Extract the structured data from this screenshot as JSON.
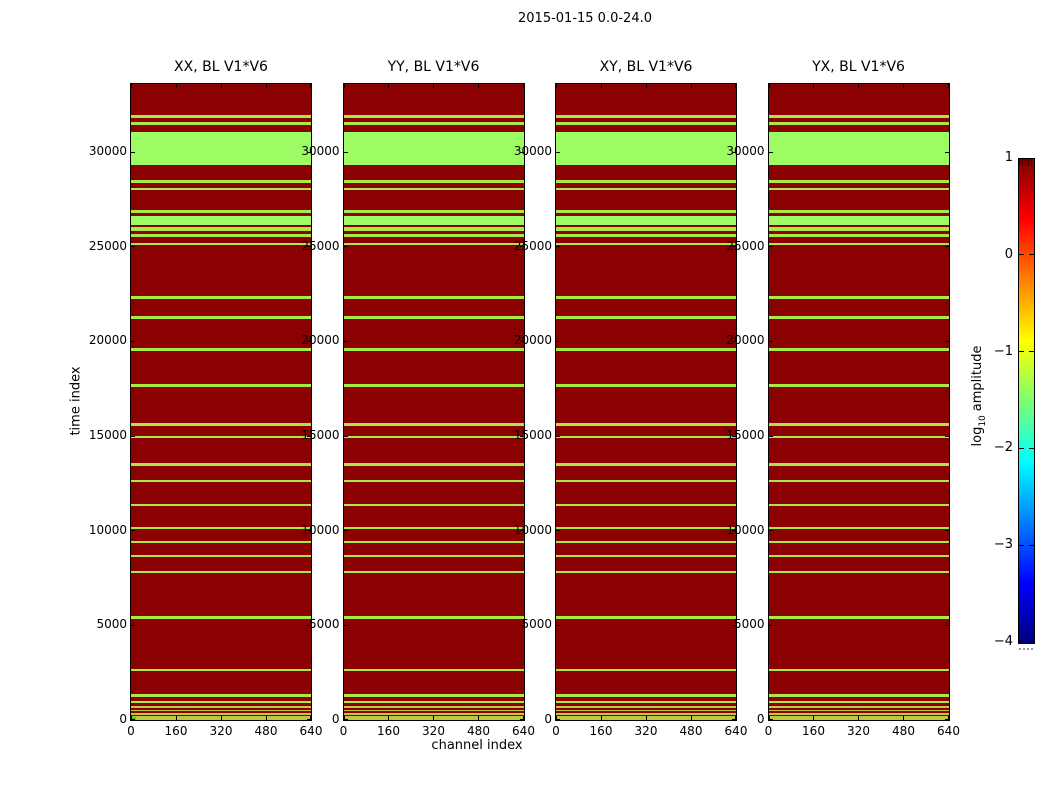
{
  "figure": {
    "title": "2015-01-15 0.0-24.0"
  },
  "colors": {
    "background": "#8b0000",
    "band": "#9dfb64",
    "line": "#a9e944",
    "yline": "#bdc83e",
    "marker": "#3ed32c",
    "axis": "#000000"
  },
  "colorbar": {
    "label": "log10 amplitude",
    "label_parts": {
      "prefix": "log",
      "sub": "10",
      "suffix": "amplitude"
    },
    "vmax": 1,
    "vmin": -4,
    "ticks": [
      {
        "v": 1,
        "label": "1"
      },
      {
        "v": 0,
        "label": "0"
      },
      {
        "v": -1,
        "label": "−1"
      },
      {
        "v": -2,
        "label": "−2"
      },
      {
        "v": -3,
        "label": "−3"
      },
      {
        "v": -4,
        "label": "−4"
      }
    ],
    "gradient": [
      [
        "0%",
        "#800000"
      ],
      [
        "12.5%",
        "#ff0000"
      ],
      [
        "37.5%",
        "#ffff00"
      ],
      [
        "50%",
        "#7dff6e"
      ],
      [
        "62.5%",
        "#00ffff"
      ],
      [
        "87.5%",
        "#0000ff"
      ],
      [
        "100%",
        "#000080"
      ]
    ]
  },
  "chart_data": {
    "type": "heatmap",
    "title": "2015-01-15 0.0-24.0",
    "xlabel": "channel index",
    "ylabel": "time index",
    "panels": [
      "XX, BL V1*V6",
      "YY, BL V1*V6",
      "XY, BL V1*V6",
      "YX, BL V1*V6"
    ],
    "x_range": [
      0,
      640
    ],
    "y_range": [
      0,
      33600
    ],
    "xticks": [
      0,
      160,
      320,
      480,
      640
    ],
    "yticks": [
      0,
      5000,
      10000,
      15000,
      20000,
      25000,
      30000
    ],
    "colorbar_label": "log10 amplitude",
    "colorbar_range": [
      -4,
      1
    ],
    "background_log10_amplitude": 1,
    "stripe_log10_amplitude": -1.5,
    "stripes": [
      [
        31790,
        31950,
        "line"
      ],
      [
        31450,
        31580,
        "line"
      ],
      [
        29330,
        31090,
        "band"
      ],
      [
        28370,
        28510,
        "line"
      ],
      [
        27980,
        28100,
        "line"
      ],
      [
        26790,
        26930,
        "line"
      ],
      [
        26150,
        26620,
        "band"
      ],
      [
        25840,
        26050,
        "line"
      ],
      [
        25530,
        25650,
        "line"
      ],
      [
        25090,
        25210,
        "line"
      ],
      [
        22260,
        22400,
        "line"
      ],
      [
        21160,
        21320,
        "line"
      ],
      [
        19500,
        19650,
        "line"
      ],
      [
        17600,
        17740,
        "line"
      ],
      [
        15550,
        15690,
        "line"
      ],
      [
        14890,
        15030,
        "line"
      ],
      [
        13420,
        13560,
        "line"
      ],
      [
        12550,
        12690,
        "line"
      ],
      [
        11290,
        11430,
        "line"
      ],
      [
        10080,
        10220,
        "line"
      ],
      [
        9340,
        9480,
        "line"
      ],
      [
        8600,
        8740,
        "line"
      ],
      [
        7740,
        7880,
        "line"
      ],
      [
        5340,
        5480,
        "line"
      ],
      [
        2580,
        2720,
        "line"
      ],
      [
        1240,
        1380,
        "line"
      ],
      [
        890,
        1030,
        "line"
      ],
      [
        620,
        740,
        "yline"
      ],
      [
        450,
        550,
        "yline"
      ],
      [
        290,
        390,
        "yline"
      ],
      [
        130,
        230,
        "yline"
      ],
      [
        0,
        80,
        "yline"
      ]
    ],
    "marker": {
      "panel": 0,
      "x0": 0,
      "x1": 18,
      "t0": 0,
      "t1": 170,
      "kind": "marker"
    }
  }
}
